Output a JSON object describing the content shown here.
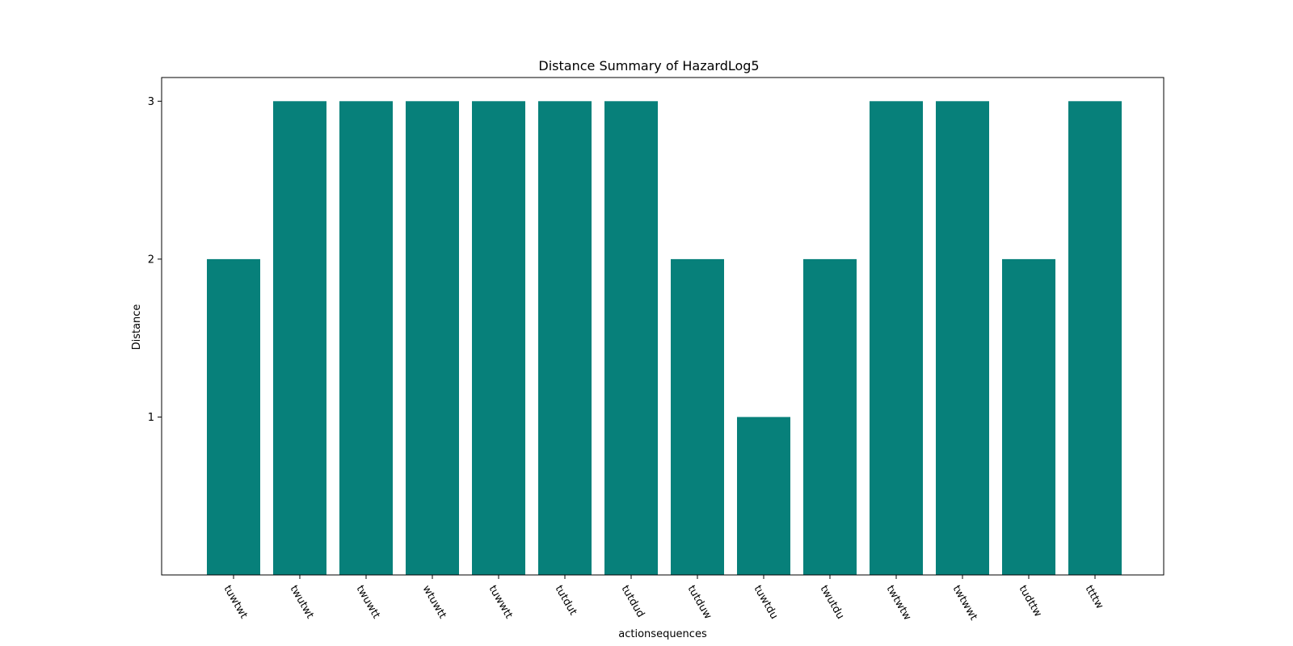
{
  "chart_data": {
    "type": "bar",
    "title": "Distance Summary of HazardLog5",
    "xlabel": "actionsequences",
    "ylabel": "Distance",
    "categories": [
      "tuwtwt",
      "twutwt",
      "twuwtt",
      "wtuwtt",
      "tuwwtt",
      "tutdut",
      "tutdud",
      "tutduw",
      "tuwtdu",
      "twutdu",
      "twtwtw",
      "twtwwt",
      "tudttw",
      "ttttw"
    ],
    "values": [
      2,
      3,
      3,
      3,
      3,
      3,
      3,
      2,
      1,
      2,
      3,
      3,
      2,
      3
    ],
    "yticks": [
      1,
      2,
      3
    ],
    "ylim": [
      0,
      3.15
    ],
    "grid": false,
    "bar_color": "#07807a"
  }
}
